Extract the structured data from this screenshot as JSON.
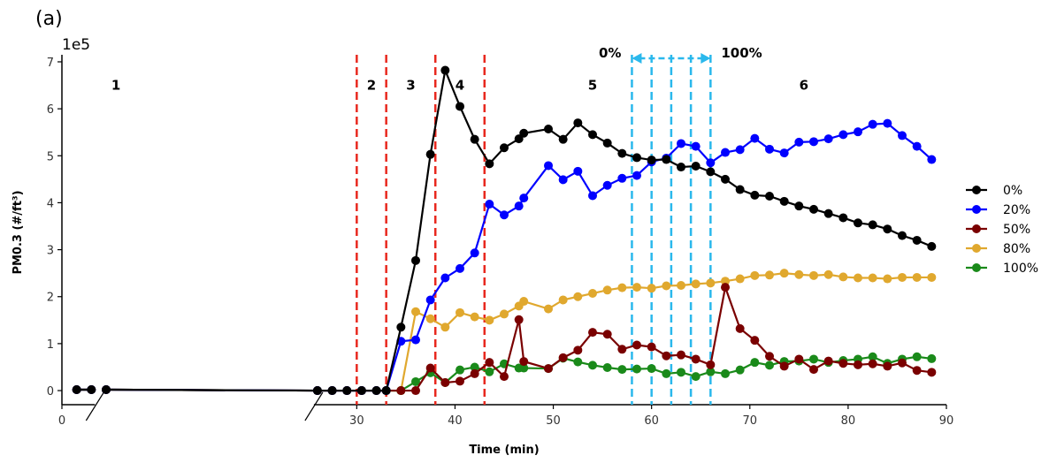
{
  "panel_label": "(a)",
  "chart_data": {
    "type": "line",
    "title": "",
    "xlabel": "Time (min)",
    "ylabel": "PM0.3 (#/ft³)",
    "y_offset_label": "1e5",
    "xlim": [
      0,
      90
    ],
    "ylim": [
      -0.3,
      7.15
    ],
    "y_scale": 100000,
    "x_ticks": [
      0,
      30,
      40,
      50,
      60,
      70,
      80,
      90
    ],
    "y_ticks": [
      0,
      1,
      2,
      3,
      4,
      5,
      6,
      7
    ],
    "axis_break": {
      "from": 3,
      "to": 26
    },
    "phase_lines": [
      30,
      33,
      38,
      43
    ],
    "phase_labels": [
      {
        "text": "1",
        "x": 5.5,
        "y": 6.5
      },
      {
        "text": "2",
        "x": 31.5,
        "y": 6.5
      },
      {
        "text": "3",
        "x": 35.5,
        "y": 6.5
      },
      {
        "text": "4",
        "x": 40.5,
        "y": 6.5
      },
      {
        "text": "5",
        "x": 54,
        "y": 6.5
      },
      {
        "text": "6",
        "x": 75.5,
        "y": 6.5
      }
    ],
    "opening_lines": [
      58,
      60,
      62,
      64,
      66
    ],
    "opening_arrow": {
      "start_label": "0%",
      "end_label": "100%",
      "y": 7.35
    },
    "legend_position": "right",
    "series": [
      {
        "name": "0%",
        "color": "#000000",
        "x": [
          1.5,
          3,
          4.5,
          26,
          27.5,
          29,
          30.5,
          32,
          33,
          34.5,
          36,
          37.5,
          39,
          40.5,
          42,
          43.5,
          45,
          46.5,
          47,
          49.5,
          51,
          52.5,
          54,
          55.5,
          57,
          58.5,
          60,
          61.5,
          63,
          64.5,
          66,
          67.5,
          69,
          70.5,
          72,
          73.5,
          75,
          76.5,
          78,
          79.5,
          81,
          82.5,
          84,
          85.5,
          87,
          88.5
        ],
        "y": [
          0.02,
          0.02,
          0.02,
          0,
          0,
          0,
          0,
          0,
          0,
          1.35,
          2.77,
          5.03,
          6.82,
          6.05,
          5.35,
          4.83,
          5.17,
          5.36,
          5.48,
          5.57,
          5.35,
          5.7,
          5.45,
          5.27,
          5.05,
          4.96,
          4.91,
          4.92,
          4.76,
          4.78,
          4.66,
          4.5,
          4.28,
          4.16,
          4.14,
          4.03,
          3.93,
          3.86,
          3.77,
          3.68,
          3.57,
          3.53,
          3.44,
          3.3,
          3.2,
          3.07
        ]
      },
      {
        "name": "20%",
        "color": "#0000ff",
        "x": [
          1.5,
          3,
          4.5,
          26,
          27.5,
          29,
          30.5,
          32,
          33,
          34.5,
          36,
          37.5,
          39,
          40.5,
          42,
          43.5,
          45,
          46.5,
          47,
          49.5,
          51,
          52.5,
          54,
          55.5,
          57,
          58.5,
          60,
          61.5,
          63,
          64.5,
          66,
          67.5,
          69,
          70.5,
          72,
          73.5,
          75,
          76.5,
          78,
          79.5,
          81,
          82.5,
          84,
          85.5,
          87,
          88.5
        ],
        "y": [
          0.02,
          0.02,
          0.02,
          0,
          0,
          0,
          0,
          0,
          0,
          1.05,
          1.08,
          1.93,
          2.4,
          2.6,
          2.93,
          3.97,
          3.74,
          3.93,
          4.1,
          4.79,
          4.49,
          4.67,
          4.15,
          4.37,
          4.52,
          4.58,
          4.87,
          4.95,
          5.26,
          5.2,
          4.85,
          5.07,
          5.13,
          5.37,
          5.14,
          5.06,
          5.29,
          5.3,
          5.36,
          5.45,
          5.51,
          5.67,
          5.69,
          5.43,
          5.2,
          4.92
        ]
      },
      {
        "name": "50%",
        "color": "#7a0000",
        "x": [
          1.5,
          3,
          4.5,
          26,
          27.5,
          29,
          30.5,
          32,
          33,
          34.5,
          36,
          37.5,
          39,
          40.5,
          42,
          43.5,
          45,
          46.5,
          47,
          49.5,
          51,
          52.5,
          54,
          55.5,
          57,
          58.5,
          60,
          61.5,
          63,
          64.5,
          66,
          67.5,
          69,
          70.5,
          72,
          73.5,
          75,
          76.5,
          78,
          79.5,
          81,
          82.5,
          84,
          85.5,
          87,
          88.5
        ],
        "y": [
          0.02,
          0.02,
          0.02,
          0,
          0,
          0,
          0,
          0,
          0,
          0,
          0,
          0.48,
          0.17,
          0.2,
          0.36,
          0.6,
          0.3,
          1.51,
          0.62,
          0.47,
          0.7,
          0.86,
          1.24,
          1.2,
          0.88,
          0.97,
          0.93,
          0.74,
          0.76,
          0.67,
          0.55,
          2.2,
          1.32,
          1.07,
          0.73,
          0.52,
          0.67,
          0.45,
          0.63,
          0.58,
          0.55,
          0.57,
          0.52,
          0.59,
          0.43,
          0.39
        ]
      },
      {
        "name": "80%",
        "color": "#e0a82e",
        "x": [
          1.5,
          3,
          4.5,
          26,
          27.5,
          29,
          30.5,
          32,
          33,
          34.5,
          36,
          37.5,
          39,
          40.5,
          42,
          43.5,
          45,
          46.5,
          47,
          49.5,
          51,
          52.5,
          54,
          55.5,
          57,
          58.5,
          60,
          61.5,
          63,
          64.5,
          66,
          67.5,
          69,
          70.5,
          72,
          73.5,
          75,
          76.5,
          78,
          79.5,
          81,
          82.5,
          84,
          85.5,
          87,
          88.5
        ],
        "y": [
          0.02,
          0.02,
          0.02,
          0,
          0,
          0,
          0,
          0,
          0,
          0,
          1.68,
          1.53,
          1.35,
          1.66,
          1.57,
          1.5,
          1.63,
          1.8,
          1.9,
          1.74,
          1.93,
          2,
          2.07,
          2.14,
          2.19,
          2.2,
          2.18,
          2.23,
          2.24,
          2.27,
          2.29,
          2.33,
          2.38,
          2.45,
          2.46,
          2.5,
          2.47,
          2.45,
          2.47,
          2.42,
          2.4,
          2.4,
          2.38,
          2.41,
          2.41,
          2.41
        ]
      },
      {
        "name": "100%",
        "color": "#1a8a1a",
        "x": [
          1.5,
          3,
          4.5,
          26,
          27.5,
          29,
          30.5,
          32,
          33,
          34.5,
          36,
          37.5,
          39,
          40.5,
          42,
          43.5,
          45,
          46.5,
          47,
          49.5,
          51,
          52.5,
          54,
          55.5,
          57,
          58.5,
          60,
          61.5,
          63,
          64.5,
          66,
          67.5,
          69,
          70.5,
          72,
          73.5,
          75,
          76.5,
          78,
          79.5,
          81,
          82.5,
          84,
          85.5,
          87,
          88.5
        ],
        "y": [
          0.02,
          0.02,
          0.02,
          0,
          0,
          0,
          0,
          0,
          0,
          0,
          0.19,
          0.38,
          0.17,
          0.44,
          0.5,
          0.4,
          0.57,
          0.48,
          0.48,
          0.47,
          0.69,
          0.61,
          0.54,
          0.49,
          0.45,
          0.46,
          0.47,
          0.36,
          0.39,
          0.3,
          0.4,
          0.36,
          0.44,
          0.6,
          0.54,
          0.62,
          0.63,
          0.67,
          0.6,
          0.64,
          0.67,
          0.72,
          0.58,
          0.67,
          0.72,
          0.68
        ]
      }
    ]
  }
}
